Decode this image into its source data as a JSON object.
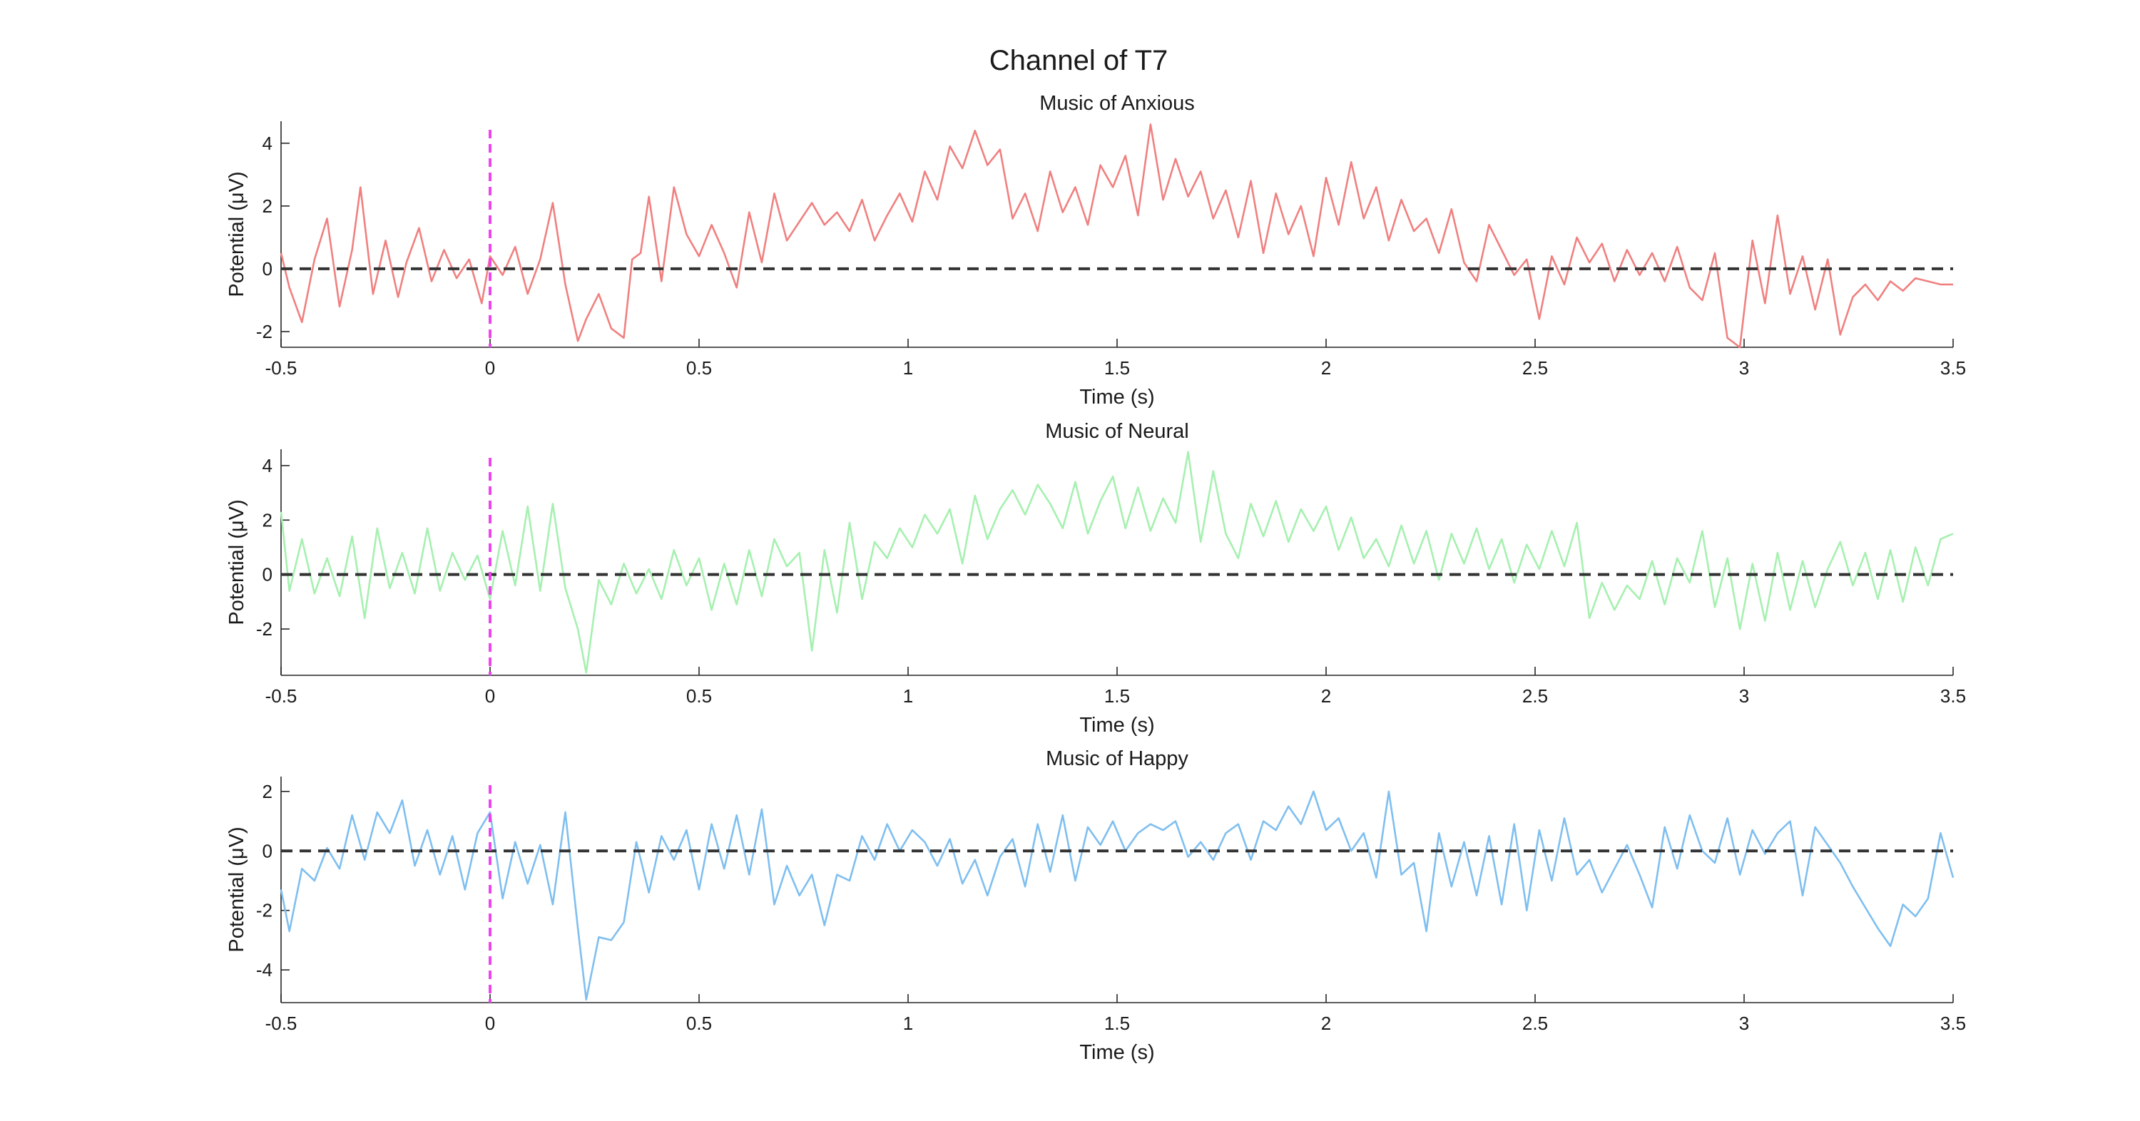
{
  "figure": {
    "title": "Channel of T7"
  },
  "colors": {
    "anxious": "#f08080",
    "neural": "#a6f0b0",
    "happy": "#7fbff0",
    "zero_line": "#333333",
    "onset_line": "#ee44ee"
  },
  "chart_data": [
    {
      "type": "line",
      "title": "Music of Anxious",
      "xlabel": "Time (s)",
      "ylabel": "Potential (μV)",
      "xlim": [
        -0.5,
        3.5
      ],
      "ylim": [
        -2.5,
        4.7
      ],
      "xticks": [
        -0.5,
        0,
        0.5,
        1,
        1.5,
        2,
        2.5,
        3,
        3.5
      ],
      "xtick_labels": [
        "-0.5",
        "0",
        "0.5",
        "1",
        "1.5",
        "2",
        "2.5",
        "3",
        "3.5"
      ],
      "yticks": [
        -2,
        0,
        2,
        4
      ],
      "ytick_labels": [
        "-2",
        "0",
        "2",
        "4"
      ],
      "grid": false,
      "color_key": "anxious",
      "reference_lines": {
        "horizontal_y": 0,
        "onset_x": 0
      },
      "series": [
        {
          "x": [
            -0.5,
            -0.48,
            -0.45,
            -0.42,
            -0.39,
            -0.36,
            -0.33,
            -0.31,
            -0.28,
            -0.25,
            -0.22,
            -0.2,
            -0.17,
            -0.14,
            -0.11,
            -0.08,
            -0.05,
            -0.02,
            0,
            0.03,
            0.06,
            0.09,
            0.12,
            0.15,
            0.18,
            0.21,
            0.23,
            0.26,
            0.29,
            0.32,
            0.34,
            0.36,
            0.38,
            0.41,
            0.44,
            0.47,
            0.5,
            0.53,
            0.56,
            0.59,
            0.62,
            0.65,
            0.68,
            0.71,
            0.74,
            0.77,
            0.8,
            0.83,
            0.86,
            0.89,
            0.92,
            0.95,
            0.98,
            1.01,
            1.04,
            1.07,
            1.1,
            1.13,
            1.16,
            1.19,
            1.22,
            1.25,
            1.28,
            1.31,
            1.34,
            1.37,
            1.4,
            1.43,
            1.46,
            1.49,
            1.52,
            1.55,
            1.58,
            1.61,
            1.64,
            1.67,
            1.7,
            1.73,
            1.76,
            1.79,
            1.82,
            1.85,
            1.88,
            1.91,
            1.94,
            1.97,
            2,
            2.03,
            2.06,
            2.09,
            2.12,
            2.15,
            2.18,
            2.21,
            2.24,
            2.27,
            2.3,
            2.33,
            2.36,
            2.39,
            2.42,
            2.45,
            2.48,
            2.51,
            2.54,
            2.57,
            2.6,
            2.63,
            2.66,
            2.69,
            2.72,
            2.75,
            2.78,
            2.81,
            2.84,
            2.87,
            2.9,
            2.93,
            2.96,
            2.99,
            3.02,
            3.05,
            3.08,
            3.11,
            3.14,
            3.17,
            3.2,
            3.23,
            3.26,
            3.29,
            3.32,
            3.35,
            3.38,
            3.41,
            3.44,
            3.47,
            3.5
          ],
          "values": [
            0.5,
            -0.6,
            -1.7,
            0.3,
            1.6,
            -1.2,
            0.6,
            2.6,
            -0.8,
            0.9,
            -0.9,
            0.2,
            1.3,
            -0.4,
            0.6,
            -0.3,
            0.3,
            -1.1,
            0.4,
            -0.2,
            0.7,
            -0.8,
            0.3,
            2.1,
            -0.5,
            -2.3,
            -1.6,
            -0.8,
            -1.9,
            -2.2,
            0.3,
            0.5,
            2.3,
            -0.4,
            2.6,
            1.1,
            0.4,
            1.4,
            0.5,
            -0.6,
            1.8,
            0.2,
            2.4,
            0.9,
            1.5,
            2.1,
            1.4,
            1.8,
            1.2,
            2.2,
            0.9,
            1.7,
            2.4,
            1.5,
            3.1,
            2.2,
            3.9,
            3.2,
            4.4,
            3.3,
            3.8,
            1.6,
            2.4,
            1.2,
            3.1,
            1.8,
            2.6,
            1.4,
            3.3,
            2.6,
            3.6,
            1.7,
            4.6,
            2.2,
            3.5,
            2.3,
            3.1,
            1.6,
            2.5,
            1.0,
            2.8,
            0.5,
            2.4,
            1.1,
            2.0,
            0.4,
            2.9,
            1.4,
            3.4,
            1.6,
            2.6,
            0.9,
            2.2,
            1.2,
            1.6,
            0.5,
            1.9,
            0.2,
            -0.4,
            1.4,
            0.6,
            -0.2,
            0.3,
            -1.6,
            0.4,
            -0.5,
            1.0,
            0.2,
            0.8,
            -0.4,
            0.6,
            -0.2,
            0.5,
            -0.4,
            0.7,
            -0.6,
            -1.0,
            0.5,
            -2.2,
            -2.5,
            0.9,
            -1.1,
            1.7,
            -0.8,
            0.4,
            -1.3,
            0.3,
            -2.1,
            -0.9,
            -0.5,
            -1.0,
            -0.4,
            -0.7,
            -0.3,
            -0.4,
            -0.5,
            -0.5
          ]
        }
      ]
    },
    {
      "type": "line",
      "title": "Music of Neural",
      "xlabel": "Time (s)",
      "ylabel": "Potential (μV)",
      "xlim": [
        -0.5,
        3.5
      ],
      "ylim": [
        -3.7,
        4.6
      ],
      "xticks": [
        -0.5,
        0,
        0.5,
        1,
        1.5,
        2,
        2.5,
        3,
        3.5
      ],
      "xtick_labels": [
        "-0.5",
        "0",
        "0.5",
        "1",
        "1.5",
        "2",
        "2.5",
        "3",
        "3.5"
      ],
      "yticks": [
        -2,
        0,
        2,
        4
      ],
      "ytick_labels": [
        "-2",
        "0",
        "2",
        "4"
      ],
      "grid": false,
      "color_key": "neural",
      "reference_lines": {
        "horizontal_y": 0,
        "onset_x": 0
      },
      "series": [
        {
          "x": [
            -0.5,
            -0.48,
            -0.45,
            -0.42,
            -0.39,
            -0.36,
            -0.33,
            -0.3,
            -0.27,
            -0.24,
            -0.21,
            -0.18,
            -0.15,
            -0.12,
            -0.09,
            -0.06,
            -0.03,
            0,
            0.03,
            0.06,
            0.09,
            0.12,
            0.15,
            0.18,
            0.21,
            0.23,
            0.26,
            0.29,
            0.32,
            0.35,
            0.38,
            0.41,
            0.44,
            0.47,
            0.5,
            0.53,
            0.56,
            0.59,
            0.62,
            0.65,
            0.68,
            0.71,
            0.74,
            0.77,
            0.8,
            0.83,
            0.86,
            0.89,
            0.92,
            0.95,
            0.98,
            1.01,
            1.04,
            1.07,
            1.1,
            1.13,
            1.16,
            1.19,
            1.22,
            1.25,
            1.28,
            1.31,
            1.34,
            1.37,
            1.4,
            1.43,
            1.46,
            1.49,
            1.52,
            1.55,
            1.58,
            1.61,
            1.64,
            1.67,
            1.7,
            1.73,
            1.76,
            1.79,
            1.82,
            1.85,
            1.88,
            1.91,
            1.94,
            1.97,
            2,
            2.03,
            2.06,
            2.09,
            2.12,
            2.15,
            2.18,
            2.21,
            2.24,
            2.27,
            2.3,
            2.33,
            2.36,
            2.39,
            2.42,
            2.45,
            2.48,
            2.51,
            2.54,
            2.57,
            2.6,
            2.63,
            2.66,
            2.69,
            2.72,
            2.75,
            2.78,
            2.81,
            2.84,
            2.87,
            2.9,
            2.93,
            2.96,
            2.99,
            3.02,
            3.05,
            3.08,
            3.11,
            3.14,
            3.17,
            3.2,
            3.23,
            3.26,
            3.29,
            3.32,
            3.35,
            3.38,
            3.41,
            3.44,
            3.47,
            3.5
          ],
          "values": [
            2.3,
            -0.6,
            1.3,
            -0.7,
            0.6,
            -0.8,
            1.4,
            -1.6,
            1.7,
            -0.5,
            0.8,
            -0.7,
            1.7,
            -0.6,
            0.8,
            -0.2,
            0.7,
            -0.9,
            1.6,
            -0.4,
            2.5,
            -0.6,
            2.6,
            -0.5,
            -2.0,
            -3.6,
            -0.2,
            -1.1,
            0.4,
            -0.7,
            0.2,
            -0.9,
            0.9,
            -0.4,
            0.6,
            -1.3,
            0.4,
            -1.1,
            0.9,
            -0.8,
            1.3,
            0.3,
            0.8,
            -2.8,
            0.9,
            -1.4,
            1.9,
            -0.9,
            1.2,
            0.6,
            1.7,
            1.0,
            2.2,
            1.5,
            2.4,
            0.4,
            2.9,
            1.3,
            2.4,
            3.1,
            2.2,
            3.3,
            2.6,
            1.7,
            3.4,
            1.5,
            2.7,
            3.6,
            1.7,
            3.2,
            1.6,
            2.8,
            1.9,
            4.5,
            1.2,
            3.8,
            1.5,
            0.6,
            2.6,
            1.4,
            2.7,
            1.2,
            2.4,
            1.6,
            2.5,
            0.9,
            2.1,
            0.6,
            1.3,
            0.3,
            1.8,
            0.4,
            1.6,
            -0.2,
            1.5,
            0.4,
            1.7,
            0.2,
            1.3,
            -0.3,
            1.1,
            0.2,
            1.6,
            0.3,
            1.9,
            -1.6,
            -0.3,
            -1.3,
            -0.4,
            -0.9,
            0.5,
            -1.1,
            0.6,
            -0.3,
            1.6,
            -1.2,
            0.6,
            -2.0,
            0.4,
            -1.7,
            0.8,
            -1.3,
            0.5,
            -1.2,
            0.2,
            1.2,
            -0.4,
            0.8,
            -0.9,
            0.9,
            -1.0,
            1.0,
            -0.4,
            1.3,
            1.5
          ]
        }
      ]
    },
    {
      "type": "line",
      "title": "Music of Happy",
      "xlabel": "Time (s)",
      "ylabel": "Potential (μV)",
      "xlim": [
        -0.5,
        3.5
      ],
      "ylim": [
        -5.1,
        2.5
      ],
      "xticks": [
        -0.5,
        0,
        0.5,
        1,
        1.5,
        2,
        2.5,
        3,
        3.5
      ],
      "xtick_labels": [
        "-0.5",
        "0",
        "0.5",
        "1",
        "1.5",
        "2",
        "2.5",
        "3",
        "3.5"
      ],
      "yticks": [
        -4,
        -2,
        0,
        2
      ],
      "ytick_labels": [
        "-4",
        "-2",
        "0",
        "2"
      ],
      "grid": false,
      "color_key": "happy",
      "reference_lines": {
        "horizontal_y": 0,
        "onset_x": 0
      },
      "series": [
        {
          "x": [
            -0.5,
            -0.48,
            -0.45,
            -0.42,
            -0.39,
            -0.36,
            -0.33,
            -0.3,
            -0.27,
            -0.24,
            -0.21,
            -0.18,
            -0.15,
            -0.12,
            -0.09,
            -0.06,
            -0.03,
            0,
            0.03,
            0.06,
            0.09,
            0.12,
            0.15,
            0.18,
            0.21,
            0.23,
            0.26,
            0.29,
            0.32,
            0.35,
            0.38,
            0.41,
            0.44,
            0.47,
            0.5,
            0.53,
            0.56,
            0.59,
            0.62,
            0.65,
            0.68,
            0.71,
            0.74,
            0.77,
            0.8,
            0.83,
            0.86,
            0.89,
            0.92,
            0.95,
            0.98,
            1.01,
            1.04,
            1.07,
            1.1,
            1.13,
            1.16,
            1.19,
            1.22,
            1.25,
            1.28,
            1.31,
            1.34,
            1.37,
            1.4,
            1.43,
            1.46,
            1.49,
            1.52,
            1.55,
            1.58,
            1.61,
            1.64,
            1.67,
            1.7,
            1.73,
            1.76,
            1.79,
            1.82,
            1.85,
            1.88,
            1.91,
            1.94,
            1.97,
            2,
            2.03,
            2.06,
            2.09,
            2.12,
            2.15,
            2.18,
            2.21,
            2.24,
            2.27,
            2.3,
            2.33,
            2.36,
            2.39,
            2.42,
            2.45,
            2.48,
            2.51,
            2.54,
            2.57,
            2.6,
            2.63,
            2.66,
            2.69,
            2.72,
            2.75,
            2.78,
            2.81,
            2.84,
            2.87,
            2.9,
            2.93,
            2.96,
            2.99,
            3.02,
            3.05,
            3.08,
            3.11,
            3.14,
            3.17,
            3.2,
            3.23,
            3.26,
            3.29,
            3.32,
            3.35,
            3.38,
            3.41,
            3.44,
            3.47,
            3.5
          ],
          "values": [
            -1.3,
            -2.7,
            -0.6,
            -1.0,
            0.1,
            -0.6,
            1.2,
            -0.3,
            1.3,
            0.6,
            1.7,
            -0.5,
            0.7,
            -0.8,
            0.5,
            -1.3,
            0.6,
            1.3,
            -1.6,
            0.3,
            -1.1,
            0.2,
            -1.8,
            1.3,
            -2.6,
            -5.0,
            -2.9,
            -3.0,
            -2.4,
            0.3,
            -1.4,
            0.5,
            -0.3,
            0.7,
            -1.3,
            0.9,
            -0.6,
            1.2,
            -0.8,
            1.4,
            -1.8,
            -0.5,
            -1.5,
            -0.8,
            -2.5,
            -0.8,
            -1.0,
            0.5,
            -0.3,
            0.9,
            0.0,
            0.7,
            0.3,
            -0.5,
            0.4,
            -1.1,
            -0.3,
            -1.5,
            -0.2,
            0.4,
            -1.2,
            0.9,
            -0.7,
            1.2,
            -1.0,
            0.8,
            0.2,
            1.0,
            0.0,
            0.6,
            0.9,
            0.7,
            1.0,
            -0.2,
            0.3,
            -0.3,
            0.6,
            0.9,
            -0.3,
            1.0,
            0.7,
            1.5,
            0.9,
            2.0,
            0.7,
            1.1,
            0.0,
            0.6,
            -0.9,
            2.0,
            -0.8,
            -0.4,
            -2.7,
            0.6,
            -1.2,
            0.3,
            -1.5,
            0.5,
            -1.8,
            0.9,
            -2.0,
            0.7,
            -1.0,
            1.1,
            -0.8,
            -0.3,
            -1.4,
            -0.6,
            0.2,
            -0.8,
            -1.9,
            0.8,
            -0.6,
            1.2,
            0.0,
            -0.4,
            1.1,
            -0.8,
            0.7,
            -0.1,
            0.6,
            1.0,
            -1.5,
            0.8,
            0.2,
            -0.4,
            -1.2,
            -1.9,
            -2.6,
            -3.2,
            -1.8,
            -2.2,
            -1.6,
            0.6,
            -0.9
          ]
        }
      ]
    }
  ]
}
